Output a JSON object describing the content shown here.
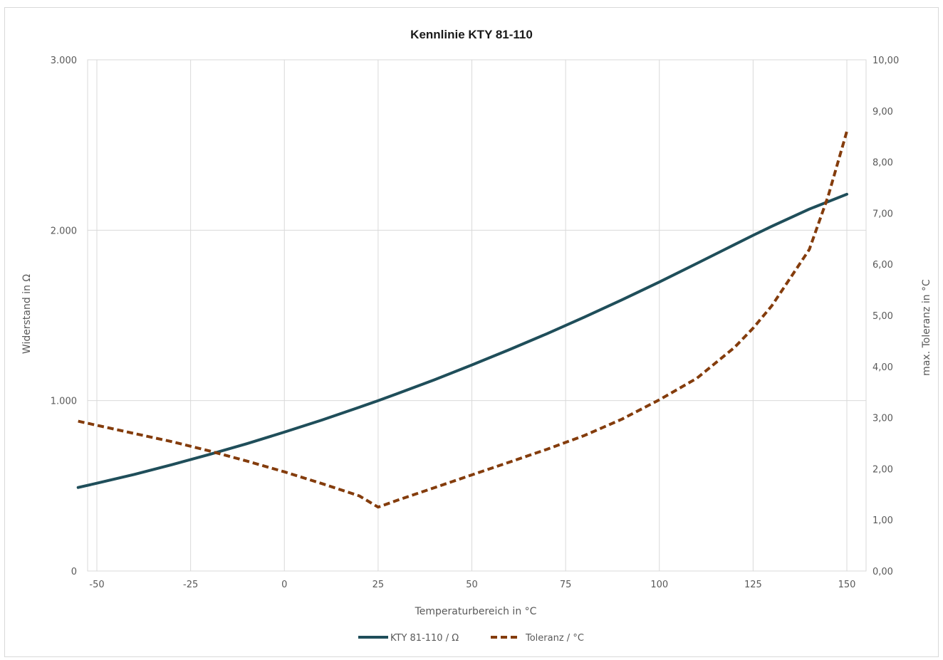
{
  "chart_data": {
    "type": "line",
    "title": "Kennlinie KTY 81-110",
    "xlabel": "Temperaturbereich in °C",
    "ylabel": "Widerstand in Ω",
    "y2label": "max. Toleranz in °C",
    "xlim": [
      -50,
      150
    ],
    "ylim": [
      0,
      3000
    ],
    "y2lim": [
      0,
      10
    ],
    "x_ticks": [
      "-50",
      "-25",
      "0",
      "25",
      "50",
      "75",
      "100",
      "125",
      "150"
    ],
    "y_ticks": [
      "0",
      "1.000",
      "2.000",
      "3.000"
    ],
    "y2_ticks": [
      "0,00",
      "1,00",
      "2,00",
      "3,00",
      "4,00",
      "5,00",
      "6,00",
      "7,00",
      "8,00",
      "9,00",
      "10,00"
    ],
    "grid": true,
    "legend_position": "bottom",
    "series": [
      {
        "name": "KTY 81-110 / Ω",
        "axis": "left",
        "color": "#1f4e5a",
        "style": "solid",
        "x": [
          -55,
          -50,
          -40,
          -30,
          -20,
          -10,
          0,
          10,
          20,
          25,
          30,
          40,
          50,
          60,
          70,
          80,
          90,
          100,
          110,
          120,
          125,
          130,
          140,
          150
        ],
        "y": [
          490,
          515,
          567,
          624,
          684,
          747,
          815,
          886,
          961,
          1000,
          1040,
          1122,
          1209,
          1299,
          1392,
          1490,
          1591,
          1696,
          1805,
          1915,
          1970,
          2023,
          2124,
          2211
        ]
      },
      {
        "name": "Toleranz / °C",
        "axis": "right",
        "color": "#843c0c",
        "style": "dashed",
        "x": [
          -55,
          -40,
          -30,
          -20,
          -10,
          0,
          10,
          20,
          25,
          30,
          40,
          50,
          60,
          70,
          80,
          90,
          100,
          110,
          120,
          125,
          130,
          140,
          145,
          150
        ],
        "y": [
          2.93,
          2.69,
          2.53,
          2.35,
          2.15,
          1.94,
          1.71,
          1.47,
          1.25,
          1.38,
          1.63,
          1.88,
          2.13,
          2.38,
          2.65,
          2.97,
          3.35,
          3.77,
          4.37,
          4.75,
          5.19,
          6.29,
          7.33,
          8.6
        ]
      }
    ]
  }
}
